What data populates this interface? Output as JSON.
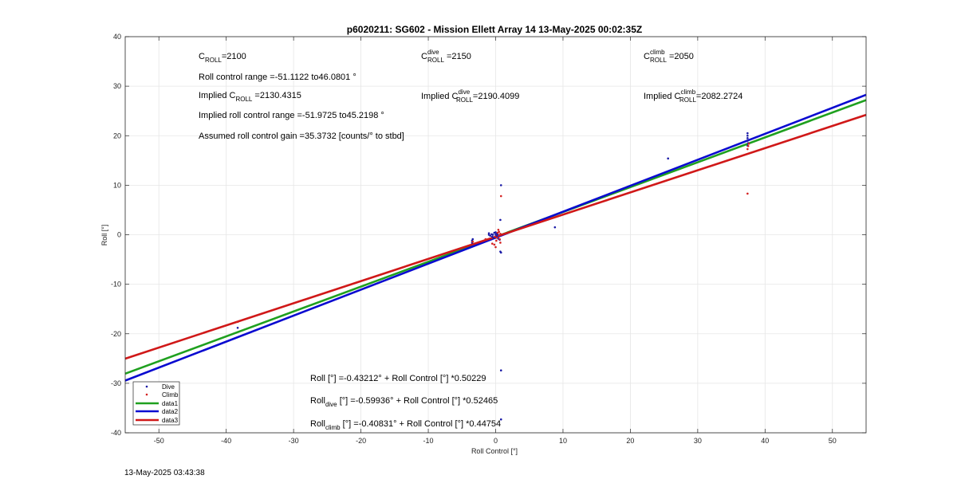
{
  "chart_data": {
    "type": "scatter",
    "title": "p6020211: SG602 - Mission Ellett Array 14 13-May-2025 00:02:35Z",
    "xlabel": "Roll Control [°]",
    "ylabel": "Roll [°]",
    "xlim": [
      -55,
      55
    ],
    "ylim": [
      -40,
      40
    ],
    "xticks": [
      -50,
      -40,
      -30,
      -20,
      -10,
      0,
      10,
      20,
      30,
      40,
      50
    ],
    "yticks": [
      -40,
      -30,
      -20,
      -10,
      0,
      10,
      20,
      30,
      40
    ],
    "grid": true,
    "legend_position": "bottom-left",
    "colors": {
      "dive": "#1a1aa6",
      "climb": "#d42020",
      "data1": "#1fa01f",
      "data2": "#0a0ad0",
      "data3": "#d01818"
    },
    "scatter_series": [
      {
        "name": "Dive",
        "color": "#1a1aa6",
        "points": [
          [
            -38.3,
            -18.8
          ],
          [
            -3.5,
            -1.2
          ],
          [
            -3.5,
            -1.6
          ],
          [
            -3.4,
            -0.9
          ],
          [
            -1.0,
            0.3
          ],
          [
            -1.0,
            0.0
          ],
          [
            -0.8,
            -0.2
          ],
          [
            -0.6,
            0.1
          ],
          [
            -0.5,
            -0.4
          ],
          [
            -0.4,
            0.0
          ],
          [
            -0.3,
            -0.7
          ],
          [
            -0.2,
            0.4
          ],
          [
            0.0,
            0.5
          ],
          [
            0.0,
            0.0
          ],
          [
            0.1,
            0.2
          ],
          [
            0.2,
            -0.3
          ],
          [
            0.3,
            0.1
          ],
          [
            0.4,
            -0.8
          ],
          [
            0.6,
            -1.0
          ],
          [
            0.7,
            3.0
          ],
          [
            0.7,
            -3.4
          ],
          [
            0.8,
            -3.6
          ],
          [
            0.8,
            10.0
          ],
          [
            0.8,
            -27.4
          ],
          [
            0.8,
            -37.3
          ],
          [
            8.8,
            1.5
          ],
          [
            25.6,
            15.4
          ],
          [
            37.4,
            18.0
          ],
          [
            37.4,
            19.0
          ],
          [
            37.4,
            19.5
          ],
          [
            37.4,
            20.0
          ],
          [
            37.4,
            20.5
          ],
          [
            37.5,
            18.5
          ]
        ]
      },
      {
        "name": "Climb",
        "color": "#d42020",
        "points": [
          [
            -38.3,
            -17.6
          ],
          [
            -3.4,
            -1.4
          ],
          [
            -1.5,
            -0.9
          ],
          [
            -0.5,
            -1.8
          ],
          [
            -0.2,
            -2.0
          ],
          [
            0.0,
            -2.5
          ],
          [
            0.1,
            -1.2
          ],
          [
            0.2,
            -0.6
          ],
          [
            0.3,
            0.4
          ],
          [
            0.4,
            1.0
          ],
          [
            0.5,
            0.6
          ],
          [
            0.5,
            -0.2
          ],
          [
            0.6,
            -0.9
          ],
          [
            0.7,
            0.2
          ],
          [
            0.7,
            -1.6
          ],
          [
            0.8,
            7.8
          ],
          [
            37.4,
            8.3
          ],
          [
            37.4,
            17.3
          ],
          [
            37.5,
            17.9
          ],
          [
            37.6,
            18.4
          ]
        ]
      }
    ],
    "line_series": [
      {
        "name": "data1",
        "color": "#1fa01f",
        "intercept": -0.43212,
        "slope": 0.50229
      },
      {
        "name": "data2",
        "color": "#0a0ad0",
        "intercept": -0.59936,
        "slope": 0.52465
      },
      {
        "name": "data3",
        "color": "#d01818",
        "intercept": -0.40831,
        "slope": 0.44754
      }
    ],
    "annotations": {
      "c_roll": {
        "main": "C",
        "sub": "ROLL",
        "rest": "=2100"
      },
      "roll_range": "Roll control range =-51.1122 to46.0801 °",
      "implied_c_roll": {
        "pre": "Implied C",
        "sub": "ROLL",
        "rest": " =2130.4315"
      },
      "implied_range": "Implied roll control range =-51.9725 to45.2198 °",
      "gain": "Assumed roll control gain =35.3732 [counts/° to stbd]",
      "c_dive": {
        "main": "C",
        "sup": "dive",
        "sub": "ROLL",
        "rest": " =2150"
      },
      "implied_dive": {
        "pre": "Implied C",
        "sup": "dive",
        "sub": "ROLL",
        "rest": "=2190.4099"
      },
      "c_climb": {
        "main": "C",
        "sup": "climb",
        "sub": "ROLL",
        "rest": " =2050"
      },
      "implied_climb": {
        "pre": "Implied C",
        "sup": "climb",
        "sub": "ROLL",
        "rest": "=2082.2724"
      },
      "fit_all": "Roll [°] =-0.43212° + Roll Control [°] *0.50229",
      "fit_dive": {
        "pre": "Roll",
        "sub": "dive",
        "rest": " [°] =-0.59936° + Roll Control [°] *0.52465"
      },
      "fit_climb": {
        "pre": "Roll",
        "sub": "climb",
        "rest": " [°] =-0.40831° + Roll Control [°] *0.44754"
      }
    },
    "legend": [
      "Dive",
      "Climb",
      "data1",
      "data2",
      "data3"
    ]
  },
  "footer_timestamp": "13-May-2025 03:43:38"
}
